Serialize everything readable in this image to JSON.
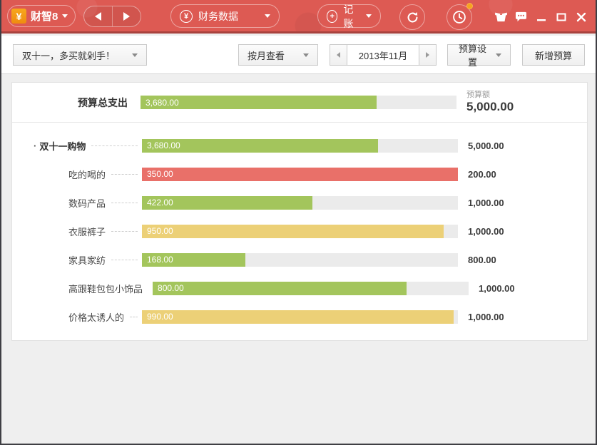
{
  "colors": {
    "topbar_red": "#dd5a53",
    "topbar_border": "#a8423e",
    "bar_green": "#a3c55c",
    "bar_red": "#e97069",
    "bar_yellow": "#ecd077",
    "bar_track": "#ebebeb",
    "logo_orange": "#f39b17"
  },
  "topbar": {
    "app_name": "财智8",
    "logo_symbol": "¥",
    "finance_data_label": "财务数据",
    "finance_icon_symbol": "¥",
    "bookkeeping_label": "记账",
    "bookkeeping_icon_symbol": "+"
  },
  "toolbar": {
    "budget_select_label": "双十一，多买就剁手！",
    "view_mode_label": "按月查看",
    "period_label": "2013年11月",
    "budget_settings_label": "预算设置",
    "new_budget_label": "新增预算"
  },
  "panel": {
    "total_label": "预算总支出",
    "budget_caption": "预算额",
    "bullet": "·",
    "bar_colors": {
      "green": "#a3c55c",
      "red": "#e97069",
      "yellow": "#ecd077"
    },
    "total": {
      "spent": "3,680.00",
      "budget": "5,000.00",
      "spent_value": 3680,
      "budget_value": 5000,
      "fill_pct": 74.7,
      "color": "green"
    },
    "rows": [
      {
        "label": "双十一购物",
        "parent": true,
        "spent": "3,680.00",
        "budget": "5,000.00",
        "spent_value": 3680,
        "budget_value": 5000,
        "fill_pct": 74.7,
        "color": "green"
      },
      {
        "label": "吃的喝的",
        "parent": false,
        "spent": "350.00",
        "budget": "200.00",
        "spent_value": 350,
        "budget_value": 200,
        "fill_pct": 100,
        "color": "red"
      },
      {
        "label": "数码产品",
        "parent": false,
        "spent": "422.00",
        "budget": "1,000.00",
        "spent_value": 422,
        "budget_value": 1000,
        "fill_pct": 54,
        "color": "green"
      },
      {
        "label": "衣服裤子",
        "parent": false,
        "spent": "950.00",
        "budget": "1,000.00",
        "spent_value": 950,
        "budget_value": 1000,
        "fill_pct": 95.5,
        "color": "yellow"
      },
      {
        "label": "家具家纺",
        "parent": false,
        "spent": "168.00",
        "budget": "800.00",
        "spent_value": 168,
        "budget_value": 800,
        "fill_pct": 32.7,
        "color": "green"
      },
      {
        "label": "高跟鞋包包小饰品",
        "parent": false,
        "spent": "800.00",
        "budget": "1,000.00",
        "spent_value": 800,
        "budget_value": 1000,
        "fill_pct": 80.4,
        "color": "green"
      },
      {
        "label": "价格太诱人的",
        "parent": false,
        "spent": "990.00",
        "budget": "1,000.00",
        "spent_value": 990,
        "budget_value": 1000,
        "fill_pct": 98.6,
        "color": "yellow"
      }
    ]
  }
}
